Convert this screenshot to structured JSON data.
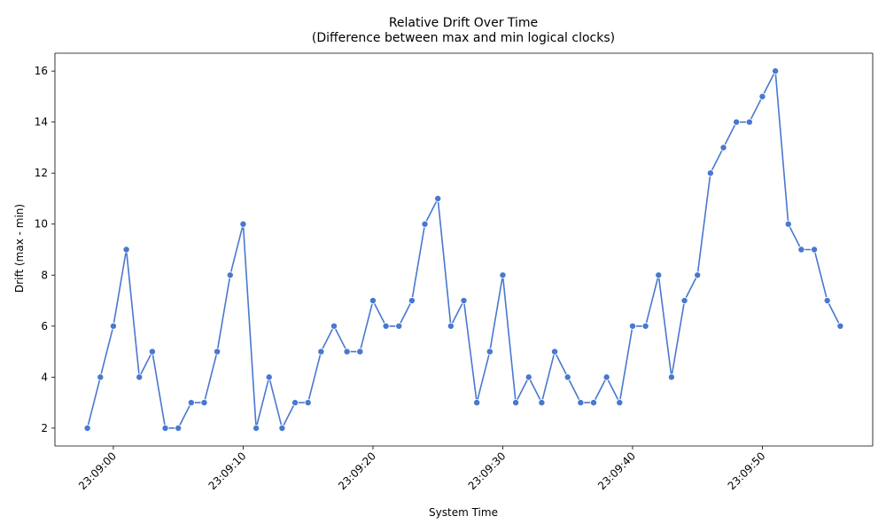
{
  "chart_data": {
    "type": "line",
    "title": "Relative Drift Over Time",
    "subtitle": "(Difference between max and min logical clocks)",
    "xlabel": "System Time",
    "ylabel": "Drift (max - min)",
    "x_start_time": "23:08:58",
    "x_step_seconds": 1,
    "x_ticks": [
      "23:09:00",
      "23:09:10",
      "23:09:20",
      "23:09:30",
      "23:09:40",
      "23:09:50"
    ],
    "y_ticks": [
      2,
      4,
      6,
      8,
      10,
      12,
      14,
      16
    ],
    "xlim": [
      "23:08:55.5",
      "23:09:58.5"
    ],
    "ylim": [
      1.3,
      16.7
    ],
    "line_color": "#4878CF",
    "marker": "circle",
    "grid": false,
    "series": [
      {
        "values": [
          2,
          4,
          6,
          9,
          4,
          5,
          2,
          2,
          3,
          3,
          5,
          8,
          10,
          2,
          4,
          2,
          3,
          3,
          5,
          6,
          5,
          5,
          7,
          6,
          6,
          7,
          10,
          11,
          6,
          7,
          3,
          5,
          8,
          3,
          4,
          3,
          5,
          4,
          3,
          3,
          4,
          3,
          6,
          6,
          8,
          4,
          7,
          8,
          12,
          13,
          14,
          14,
          15,
          16,
          10,
          9,
          9,
          7,
          6
        ]
      }
    ]
  }
}
